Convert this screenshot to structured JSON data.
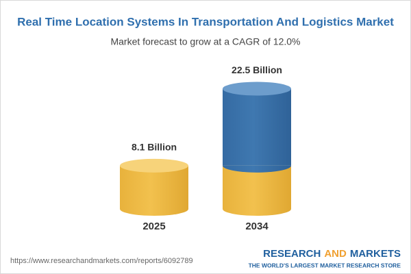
{
  "chart_data": {
    "type": "cylinder",
    "title": "Real Time Location Systems In Transportation And Logistics Market",
    "subtitle": "Market forecast to grow at a CAGR of 12.0%",
    "categories": [
      "2025",
      "2034"
    ],
    "values": [
      8.1,
      22.5
    ],
    "value_labels": [
      "8.1 Billion",
      "22.5 Billion"
    ],
    "color": "#f2c14e",
    "growth_color": "#3f78b0"
  },
  "footer": {
    "url": "https://www.researchandmarkets.com/reports/6092789",
    "brand": [
      "RESEARCH",
      "AND",
      "MARKETS"
    ],
    "tagline": "THE WORLD'S LARGEST MARKET RESEARCH STORE"
  }
}
